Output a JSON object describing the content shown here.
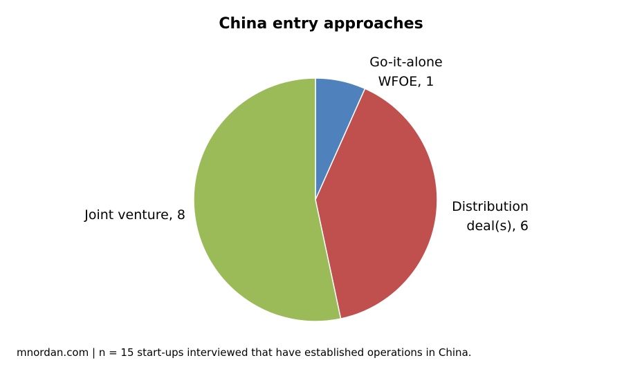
{
  "chart_data": {
    "type": "pie",
    "title": "China entry approaches",
    "slices": [
      {
        "label": "Go-it-alone WFOE",
        "value": 1,
        "color": "#4f81bd",
        "label_lines": [
          "Go-it-alone",
          "WFOE, 1"
        ]
      },
      {
        "label": "Distribution deal(s)",
        "value": 6,
        "color": "#c0504d",
        "label_lines": [
          "Distribution",
          "deal(s), 6"
        ]
      },
      {
        "label": "Joint venture",
        "value": 8,
        "color": "#9bbb59",
        "label_lines": [
          "Joint venture, 8"
        ]
      }
    ],
    "start_angle": "12 o'clock",
    "direction": "clockwise",
    "legend": "none"
  },
  "footnote": "mnordan.com | n = 15 start-ups interviewed that have established operations in China."
}
